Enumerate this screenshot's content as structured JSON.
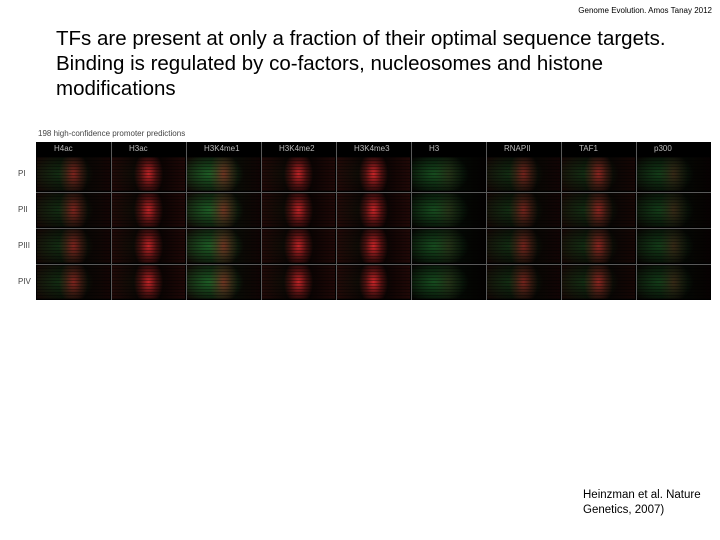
{
  "header_note": "Genome Evolution. Amos Tanay 2012",
  "title": "TFs are present at only a fraction of their optimal sequence targets. Binding is regulated by co-factors, nucleosomes and histone modifications",
  "figure": {
    "label": "198 high-confidence promoter predictions",
    "columns": [
      {
        "label": "H4ac",
        "red": 0.55,
        "green": 0.25
      },
      {
        "label": "H3ac",
        "red": 0.85,
        "green": 0.05
      },
      {
        "label": "H3K4me1",
        "red": 0.45,
        "green": 0.55
      },
      {
        "label": "H3K4me2",
        "red": 0.85,
        "green": 0.05
      },
      {
        "label": "H3K4me3",
        "red": 0.9,
        "green": 0.05
      },
      {
        "label": "H3",
        "red": 0.1,
        "green": 0.45
      },
      {
        "label": "RNAPII",
        "red": 0.5,
        "green": 0.25
      },
      {
        "label": "TAF1",
        "red": 0.6,
        "green": 0.25
      },
      {
        "label": "p300",
        "red": 0.2,
        "green": 0.35
      }
    ],
    "rows": [
      "PI",
      "PII",
      "PIII",
      "PIV"
    ],
    "colors": {
      "red": "#e0282c",
      "green": "#2ea040",
      "background": "#000000",
      "grid": "#5a5a5a"
    }
  },
  "citation": "Heinzman et al. Nature Genetics, 2007)"
}
